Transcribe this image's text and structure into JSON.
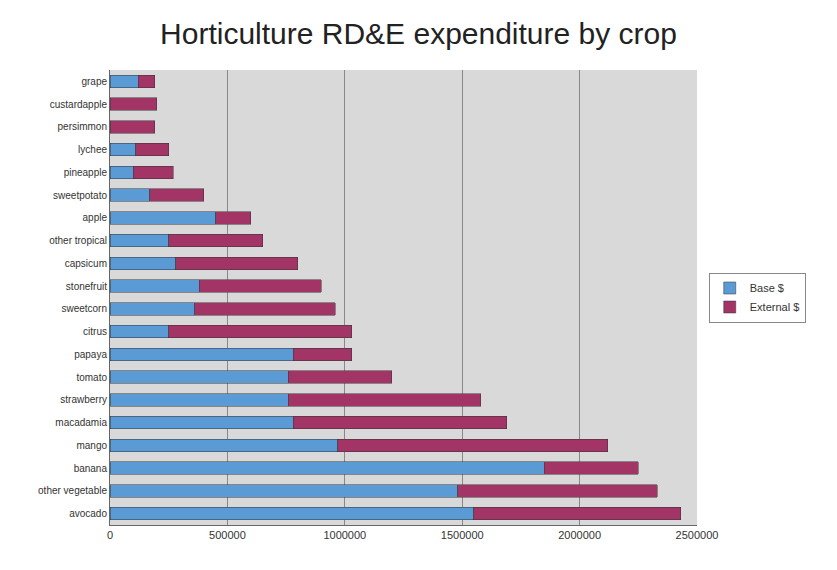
{
  "chart_data": {
    "type": "bar",
    "orientation": "horizontal",
    "stacked": true,
    "title": "Horticulture RD&E expenditure by crop",
    "categories": [
      "grape",
      "custardapple",
      "persimmon",
      "lychee",
      "pineapple",
      "sweetpotato",
      "apple",
      "other tropical",
      "capsicum",
      "stonefruit",
      "sweetcorn",
      "citrus",
      "papaya",
      "tomato",
      "strawberry",
      "macadamia",
      "mango",
      "banana",
      "other vegetable",
      "avocado"
    ],
    "series": [
      {
        "name": "Base $",
        "color": "#5b9bd5",
        "values": [
          120000,
          0,
          0,
          110000,
          100000,
          170000,
          450000,
          250000,
          280000,
          380000,
          360000,
          250000,
          780000,
          760000,
          760000,
          780000,
          970000,
          1850000,
          1480000,
          1550000
        ]
      },
      {
        "name": "External $",
        "color": "#a33466",
        "values": [
          70000,
          200000,
          190000,
          140000,
          170000,
          230000,
          150000,
          400000,
          520000,
          520000,
          600000,
          780000,
          250000,
          440000,
          820000,
          910000,
          1150000,
          400000,
          850000,
          880000
        ]
      }
    ],
    "xlim": [
      0,
      2500000
    ],
    "xticks": [
      0,
      500000,
      1000000,
      1500000,
      2000000,
      2500000
    ],
    "grid": true,
    "legend": "right"
  }
}
